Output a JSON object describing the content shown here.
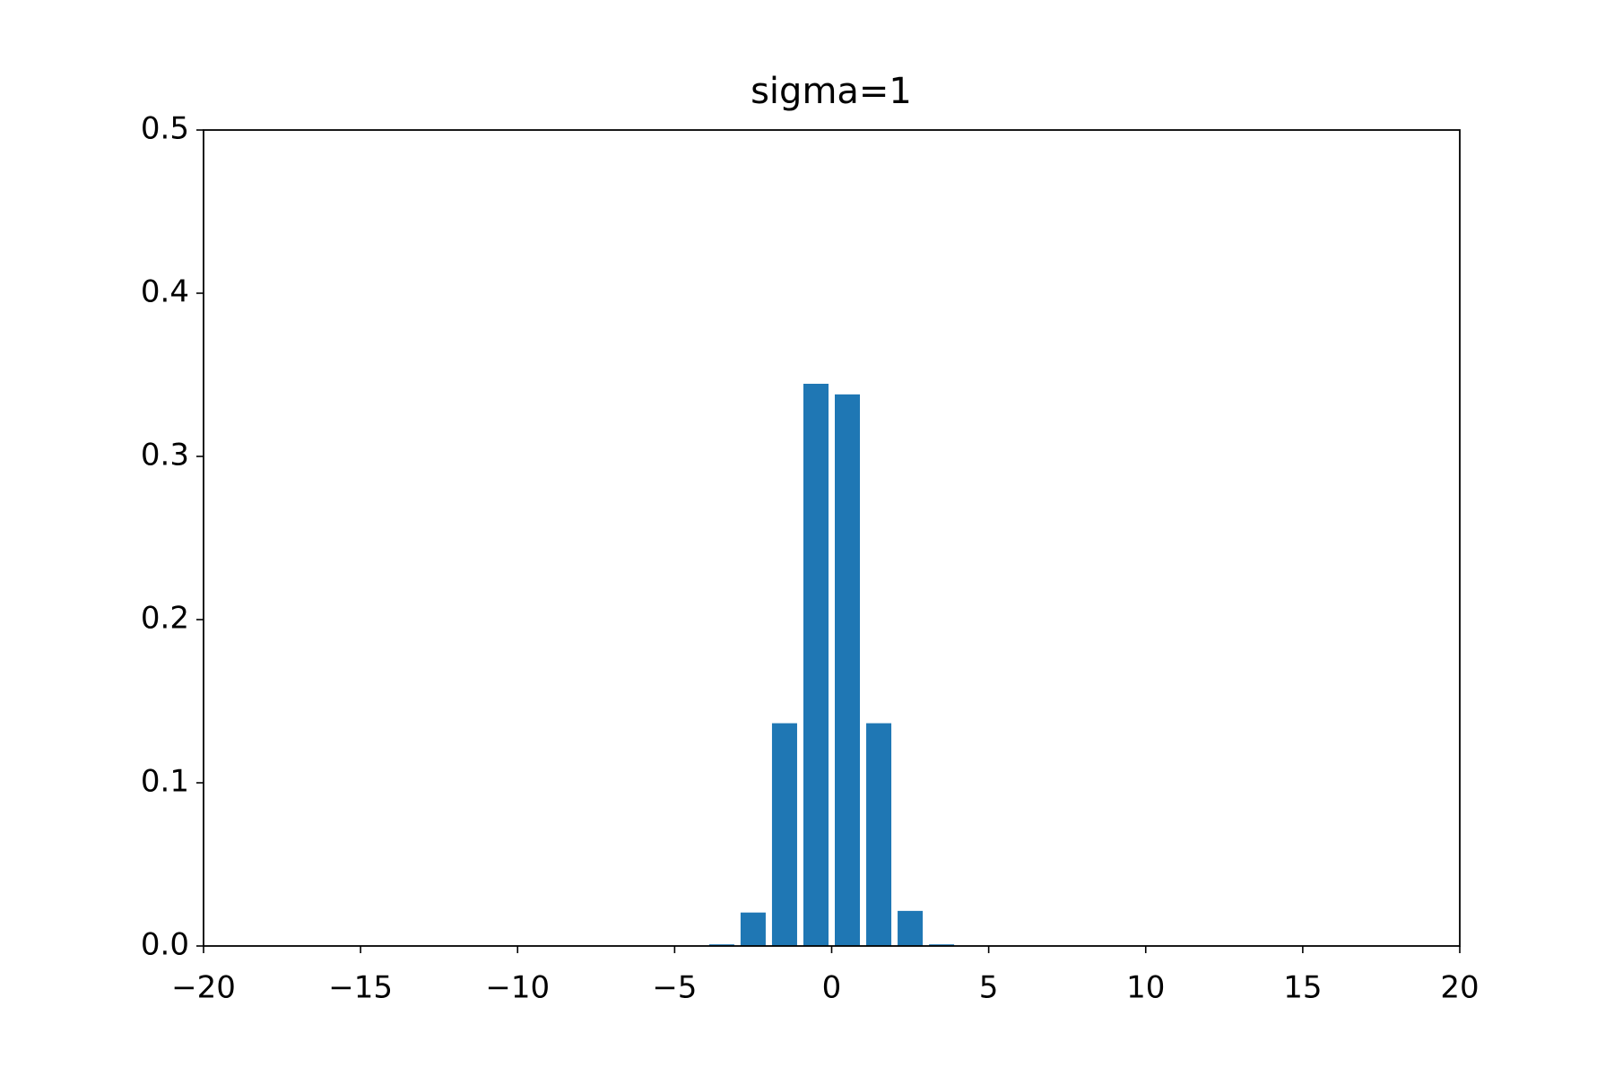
{
  "chart_data": {
    "type": "bar",
    "title": "sigma=1",
    "x": [
      -3.5,
      -2.5,
      -1.5,
      -0.5,
      0.5,
      1.5,
      2.5,
      3.5
    ],
    "values": [
      0.001,
      0.0205,
      0.1365,
      0.3445,
      0.338,
      0.1365,
      0.0215,
      0.001
    ],
    "color": "#1f77b4",
    "xlim": [
      -20,
      20
    ],
    "xticks": [
      {
        "value": -20,
        "label": "−20"
      },
      {
        "value": -15,
        "label": "−15"
      },
      {
        "value": -10,
        "label": "−10"
      },
      {
        "value": -5,
        "label": "−5"
      },
      0,
      5,
      10,
      15,
      20
    ],
    "ylim": [
      0,
      0.5
    ],
    "yticks": [
      {
        "value": 0,
        "label": "0.0"
      },
      0.1,
      0.2,
      0.3,
      0.4,
      0.5
    ],
    "grid": false
  }
}
